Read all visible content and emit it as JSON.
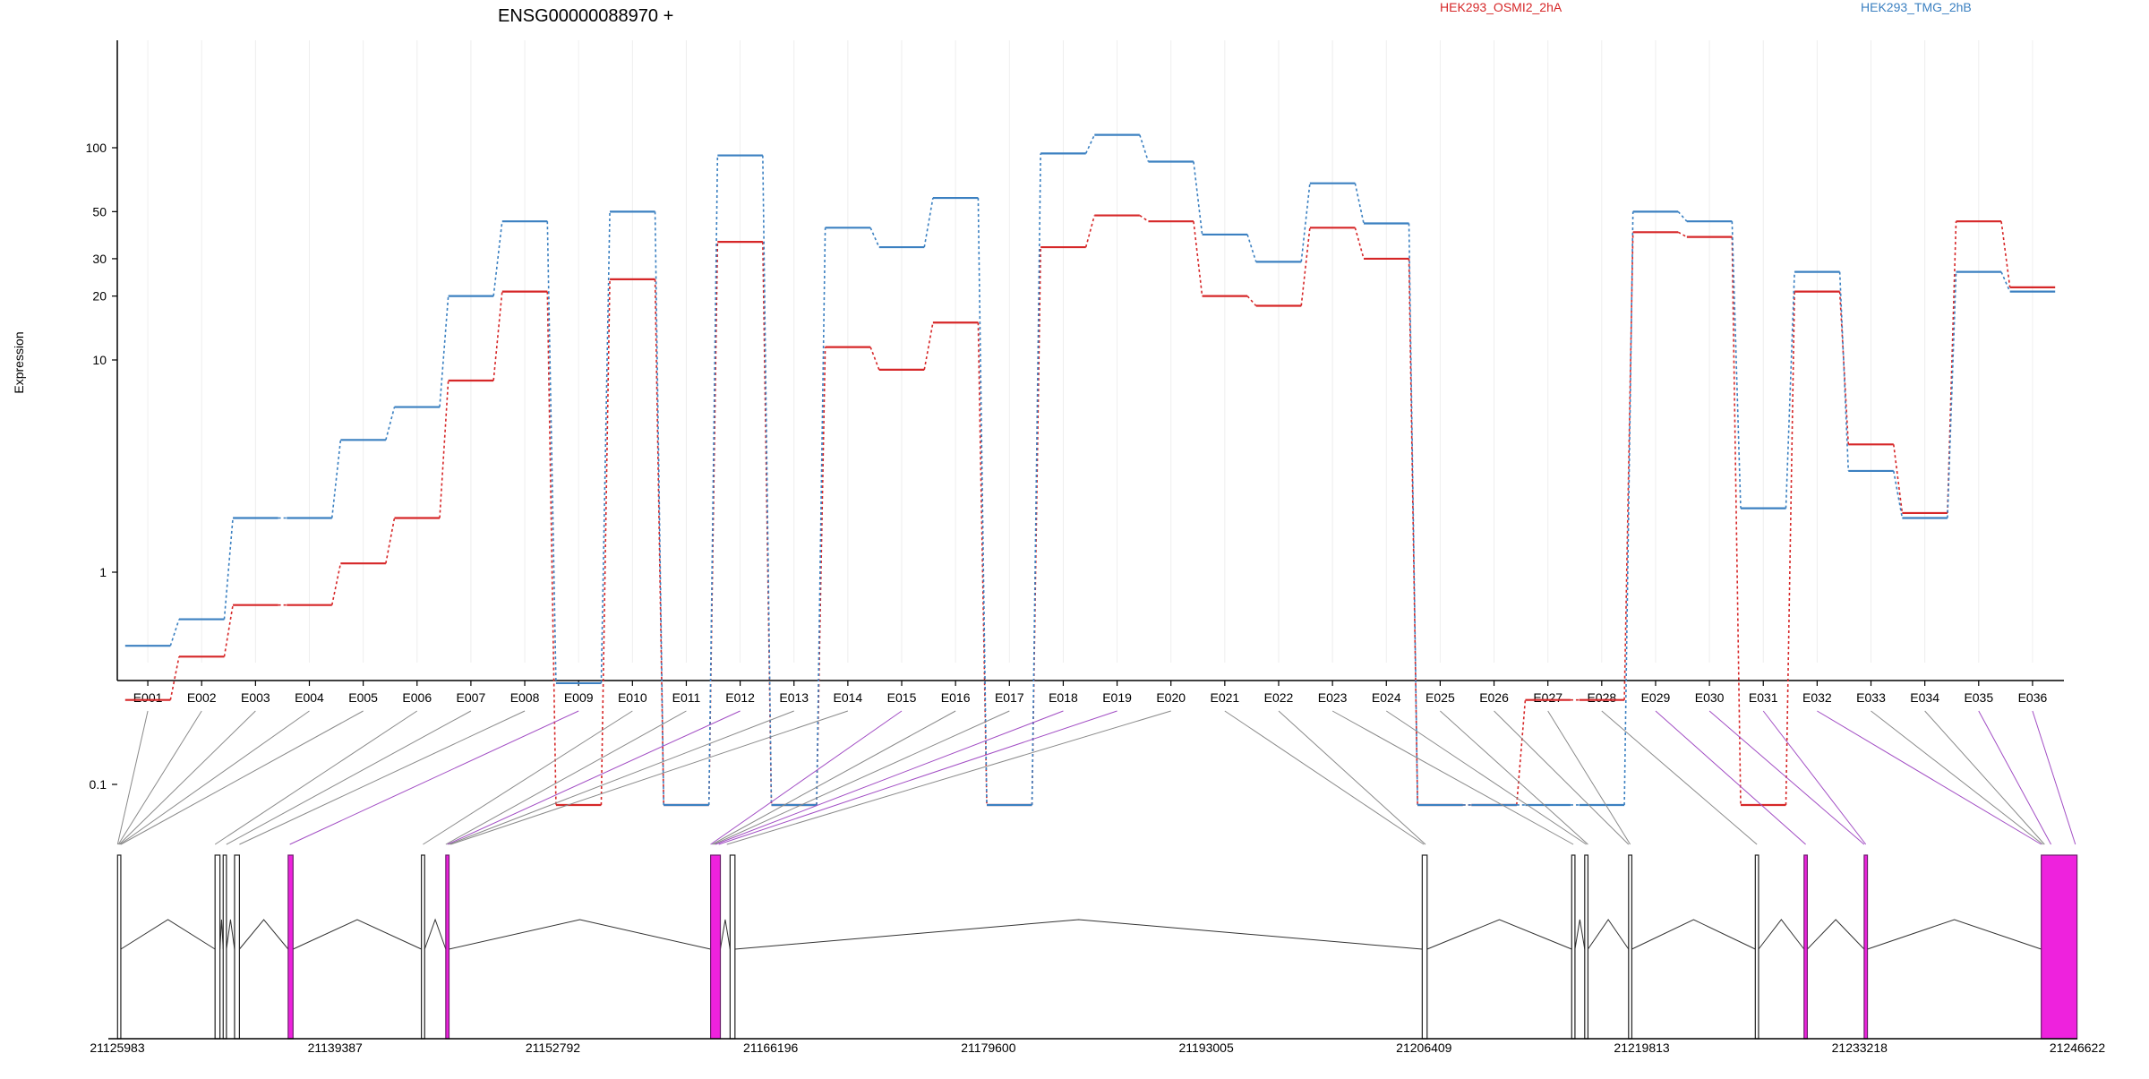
{
  "chart_data": {
    "type": "line",
    "title": "ENSG00000088970 +",
    "ylabel": "Expression",
    "xlabel": "",
    "y_scale": "log",
    "ylim": [
      0.075,
      140
    ],
    "y_ticks": [
      0.1,
      1,
      10,
      20,
      30,
      50,
      100
    ],
    "y_tick_labels": [
      "0.1",
      "1",
      "10",
      "20",
      "30",
      "50",
      "100"
    ],
    "categories": [
      "E001",
      "E002",
      "E003",
      "E004",
      "E005",
      "E006",
      "E007",
      "E008",
      "E009",
      "E010",
      "E011",
      "E012",
      "E013",
      "E014",
      "E015",
      "E016",
      "E017",
      "E018",
      "E019",
      "E020",
      "E021",
      "E022",
      "E023",
      "E024",
      "E025",
      "E026",
      "E027",
      "E028",
      "E029",
      "E030",
      "E031",
      "E032",
      "E033",
      "E034",
      "E035",
      "E036"
    ],
    "series": [
      {
        "name": "HEK293_OSMI2_2hA",
        "color": "#d62728",
        "values": [
          0.25,
          0.4,
          0.7,
          0.7,
          1.1,
          1.8,
          8,
          21,
          0.08,
          24,
          0.08,
          36,
          0.08,
          11.5,
          9,
          15,
          0.08,
          34,
          48,
          45,
          20,
          18,
          42,
          30,
          0.08,
          0.08,
          0.25,
          0.25,
          40,
          38,
          0.08,
          21,
          4,
          1.9,
          45,
          22
        ]
      },
      {
        "name": "HEK293_TMG_2hB",
        "color": "#3b80c1",
        "values": [
          0.45,
          0.6,
          1.8,
          1.8,
          4.2,
          6,
          20,
          45,
          0.3,
          50,
          0.08,
          92,
          0.08,
          42,
          34,
          58,
          0.08,
          94,
          115,
          86,
          39,
          29,
          68,
          44,
          0.08,
          0.08,
          0.08,
          0.08,
          50,
          45,
          2,
          26,
          3,
          1.8,
          26,
          21
        ]
      }
    ],
    "legend_placement": "top",
    "gene_model": {
      "genomic_ticks": [
        "21125983",
        "21139387",
        "21152792",
        "21166196",
        "21179600",
        "21193005",
        "21206409",
        "21219813",
        "21233218",
        "21246622"
      ],
      "start": 21125983,
      "end": 21246622,
      "exons": [
        {
          "start": 21126000,
          "end": 21126200,
          "highlight": false
        },
        {
          "start": 21132000,
          "end": 21132300,
          "highlight": false
        },
        {
          "start": 21132500,
          "end": 21132700,
          "highlight": false
        },
        {
          "start": 21133200,
          "end": 21133500,
          "highlight": false
        },
        {
          "start": 21136500,
          "end": 21136800,
          "highlight": true
        },
        {
          "start": 21144700,
          "end": 21144900,
          "highlight": false
        },
        {
          "start": 21146200,
          "end": 21146400,
          "highlight": true
        },
        {
          "start": 21162500,
          "end": 21163100,
          "highlight": true
        },
        {
          "start": 21163700,
          "end": 21164000,
          "highlight": false
        },
        {
          "start": 21206300,
          "end": 21206600,
          "highlight": false
        },
        {
          "start": 21215500,
          "end": 21215700,
          "highlight": false
        },
        {
          "start": 21216300,
          "end": 21216500,
          "highlight": false
        },
        {
          "start": 21219000,
          "end": 21219200,
          "highlight": false
        },
        {
          "start": 21226800,
          "end": 21227000,
          "highlight": false
        },
        {
          "start": 21229800,
          "end": 21230000,
          "highlight": true
        },
        {
          "start": 21233500,
          "end": 21233700,
          "highlight": true
        },
        {
          "start": 21244400,
          "end": 21246600,
          "highlight": true
        }
      ],
      "links": [
        {
          "exon": "E001",
          "pos": 21126000,
          "highlight": false
        },
        {
          "exon": "E002",
          "pos": 21126050,
          "highlight": false
        },
        {
          "exon": "E003",
          "pos": 21126100,
          "highlight": false
        },
        {
          "exon": "E004",
          "pos": 21126150,
          "highlight": false
        },
        {
          "exon": "E005",
          "pos": 21126200,
          "highlight": false
        },
        {
          "exon": "E006",
          "pos": 21132000,
          "highlight": false
        },
        {
          "exon": "E007",
          "pos": 21132700,
          "highlight": false
        },
        {
          "exon": "E008",
          "pos": 21133500,
          "highlight": false
        },
        {
          "exon": "E009",
          "pos": 21136600,
          "highlight": true
        },
        {
          "exon": "E010",
          "pos": 21144800,
          "highlight": false
        },
        {
          "exon": "E011",
          "pos": 21146200,
          "highlight": false
        },
        {
          "exon": "E012",
          "pos": 21146300,
          "highlight": true
        },
        {
          "exon": "E013",
          "pos": 21146400,
          "highlight": false
        },
        {
          "exon": "E014",
          "pos": 21146500,
          "highlight": false
        },
        {
          "exon": "E015",
          "pos": 21162500,
          "highlight": true
        },
        {
          "exon": "E016",
          "pos": 21162600,
          "highlight": false
        },
        {
          "exon": "E017",
          "pos": 21162700,
          "highlight": false
        },
        {
          "exon": "E018",
          "pos": 21162800,
          "highlight": true
        },
        {
          "exon": "E019",
          "pos": 21163000,
          "highlight": true
        },
        {
          "exon": "E020",
          "pos": 21163500,
          "highlight": false
        },
        {
          "exon": "E021",
          "pos": 21206400,
          "highlight": false
        },
        {
          "exon": "E022",
          "pos": 21206500,
          "highlight": false
        },
        {
          "exon": "E023",
          "pos": 21215600,
          "highlight": false
        },
        {
          "exon": "E024",
          "pos": 21216400,
          "highlight": false
        },
        {
          "exon": "E025",
          "pos": 21216500,
          "highlight": false
        },
        {
          "exon": "E026",
          "pos": 21219000,
          "highlight": false
        },
        {
          "exon": "E027",
          "pos": 21219100,
          "highlight": false
        },
        {
          "exon": "E028",
          "pos": 21226900,
          "highlight": false
        },
        {
          "exon": "E029",
          "pos": 21229900,
          "highlight": true
        },
        {
          "exon": "E030",
          "pos": 21233500,
          "highlight": true
        },
        {
          "exon": "E031",
          "pos": 21233600,
          "highlight": true
        },
        {
          "exon": "E032",
          "pos": 21244400,
          "highlight": true
        },
        {
          "exon": "E033",
          "pos": 21244500,
          "highlight": false
        },
        {
          "exon": "E034",
          "pos": 21244600,
          "highlight": false
        },
        {
          "exon": "E035",
          "pos": 21245000,
          "highlight": true
        },
        {
          "exon": "E036",
          "pos": 21246500,
          "highlight": true
        }
      ]
    }
  }
}
